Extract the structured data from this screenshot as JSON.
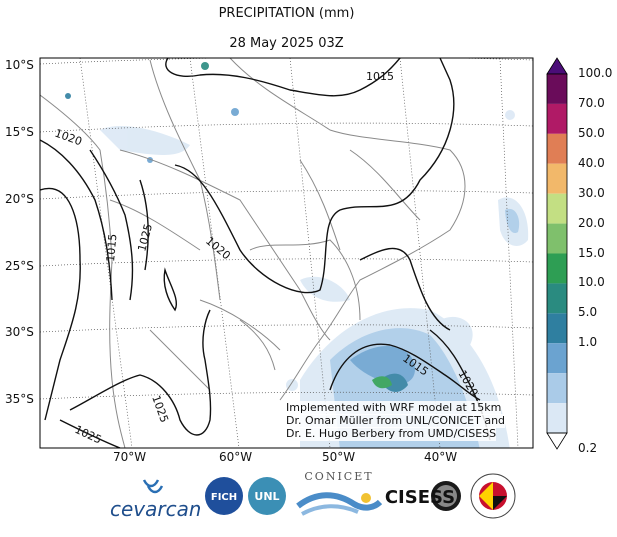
{
  "title": "PRECIPITATION (mm)",
  "subtitle": "28 May 2025 03Z",
  "lat_ticks": [
    "10°S",
    "15°S",
    "20°S",
    "25°S",
    "30°S",
    "35°S"
  ],
  "lon_ticks": [
    "70°W",
    "60°W",
    "50°W",
    "40°W"
  ],
  "colorbar": {
    "levels": [
      "100.0",
      "70.0",
      "50.0",
      "40.0",
      "30.0",
      "20.0",
      "15.0",
      "10.0",
      "5.0",
      "1.0",
      "0.2"
    ],
    "colors": [
      "#6a0c5a",
      "#b01a66",
      "#e07e55",
      "#f2b86a",
      "#c3df83",
      "#7fc06c",
      "#2e9e54",
      "#2a8b80",
      "#2f7fa0",
      "#6ba3d0",
      "#aacbe8",
      "#dbe8f5"
    ]
  },
  "isobar_labels": [
    "1015",
    "1020",
    "1025",
    "1015",
    "1025",
    "1020",
    "1025",
    "1015",
    "1020"
  ],
  "credit": {
    "line1": "Implemented with WRF model at 15km",
    "line2": "Dr. Omar Müller from UNL/CONICET and",
    "line3": "Dr. E. Hugo Berbery from UMD/CISESS"
  },
  "logos": {
    "cevarcam": "cevarcam",
    "fich": "FICH",
    "unl": "UNL",
    "conicet": "CONICET",
    "cisess": "CISESS"
  }
}
